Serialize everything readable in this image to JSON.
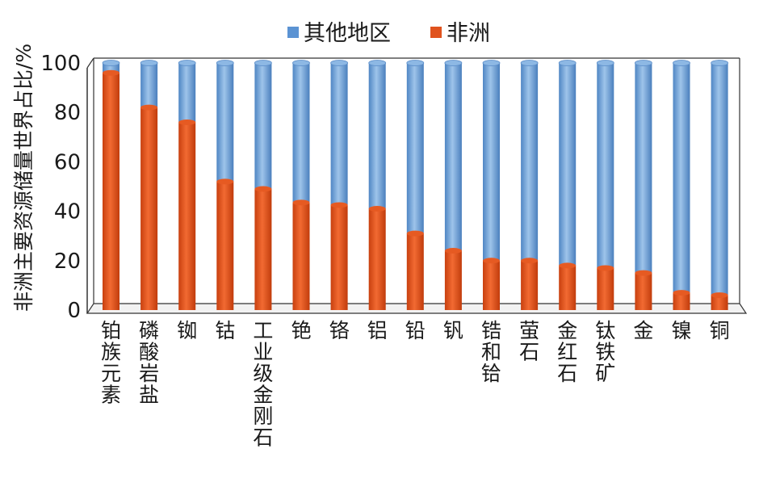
{
  "chart_data": {
    "type": "bar",
    "stacked": true,
    "title": "",
    "xlabel": "",
    "ylabel": "非洲主要资源储量世界占比/%",
    "ylim": [
      0,
      100
    ],
    "yticks": [
      "0",
      "20",
      "40",
      "60",
      "80",
      "100"
    ],
    "grid": false,
    "legend_position": "top",
    "categories": [
      "铂族元素",
      "磷酸岩盐",
      "铷",
      "钴",
      "工业级金刚石",
      "铯",
      "铬",
      "铝",
      "铅",
      "钒",
      "锆和铪",
      "萤石",
      "金红石",
      "钛铁矿",
      "金",
      "镍",
      "铜"
    ],
    "series": [
      {
        "name": "非洲",
        "color": "#e0531e",
        "values": [
          96,
          82,
          76,
          52,
          49,
          43.5,
          42.5,
          41,
          31,
          24,
          20,
          20,
          18,
          17,
          15,
          7,
          6
        ]
      },
      {
        "name": "其他地区",
        "color": "#77aad9",
        "values": [
          4,
          18,
          24,
          48,
          51,
          56.5,
          57.5,
          59,
          69,
          76,
          80,
          80,
          82,
          83,
          85,
          93,
          94
        ]
      }
    ]
  }
}
